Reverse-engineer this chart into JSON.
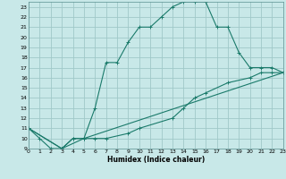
{
  "title": "",
  "xlabel": "Humidex (Indice chaleur)",
  "bg_color": "#c8e8e8",
  "grid_color": "#a0c8c8",
  "line_color": "#1a7a6a",
  "xlim": [
    0,
    23
  ],
  "ylim": [
    9,
    23.5
  ],
  "xticks": [
    0,
    1,
    2,
    3,
    4,
    5,
    6,
    7,
    8,
    9,
    10,
    11,
    12,
    13,
    14,
    15,
    16,
    17,
    18,
    19,
    20,
    21,
    22,
    23
  ],
  "yticks": [
    9,
    10,
    11,
    12,
    13,
    14,
    15,
    16,
    17,
    18,
    19,
    20,
    21,
    22,
    23
  ],
  "line1_x": [
    0,
    1,
    2,
    3,
    4,
    5,
    6,
    7,
    8,
    9,
    10,
    11,
    12,
    13,
    14,
    15,
    16,
    17,
    18,
    19,
    20,
    21,
    22,
    23
  ],
  "line1_y": [
    11,
    10,
    9,
    9,
    10,
    10,
    13,
    17.5,
    17.5,
    19.5,
    21,
    21,
    22,
    23,
    23.5,
    23.5,
    23.5,
    21,
    21,
    18.5,
    17,
    17,
    17,
    16.5
  ],
  "line2_x": [
    0,
    3,
    4,
    5,
    6,
    7,
    9,
    10,
    13,
    14,
    15,
    16,
    18,
    20,
    21,
    22,
    23
  ],
  "line2_y": [
    11,
    9,
    10,
    10,
    10,
    10,
    10.5,
    11,
    12,
    13,
    14,
    14.5,
    15.5,
    16,
    16.5,
    16.5,
    16.5
  ],
  "line3_x": [
    0,
    3,
    5,
    23
  ],
  "line3_y": [
    11,
    9,
    10,
    16.5
  ]
}
